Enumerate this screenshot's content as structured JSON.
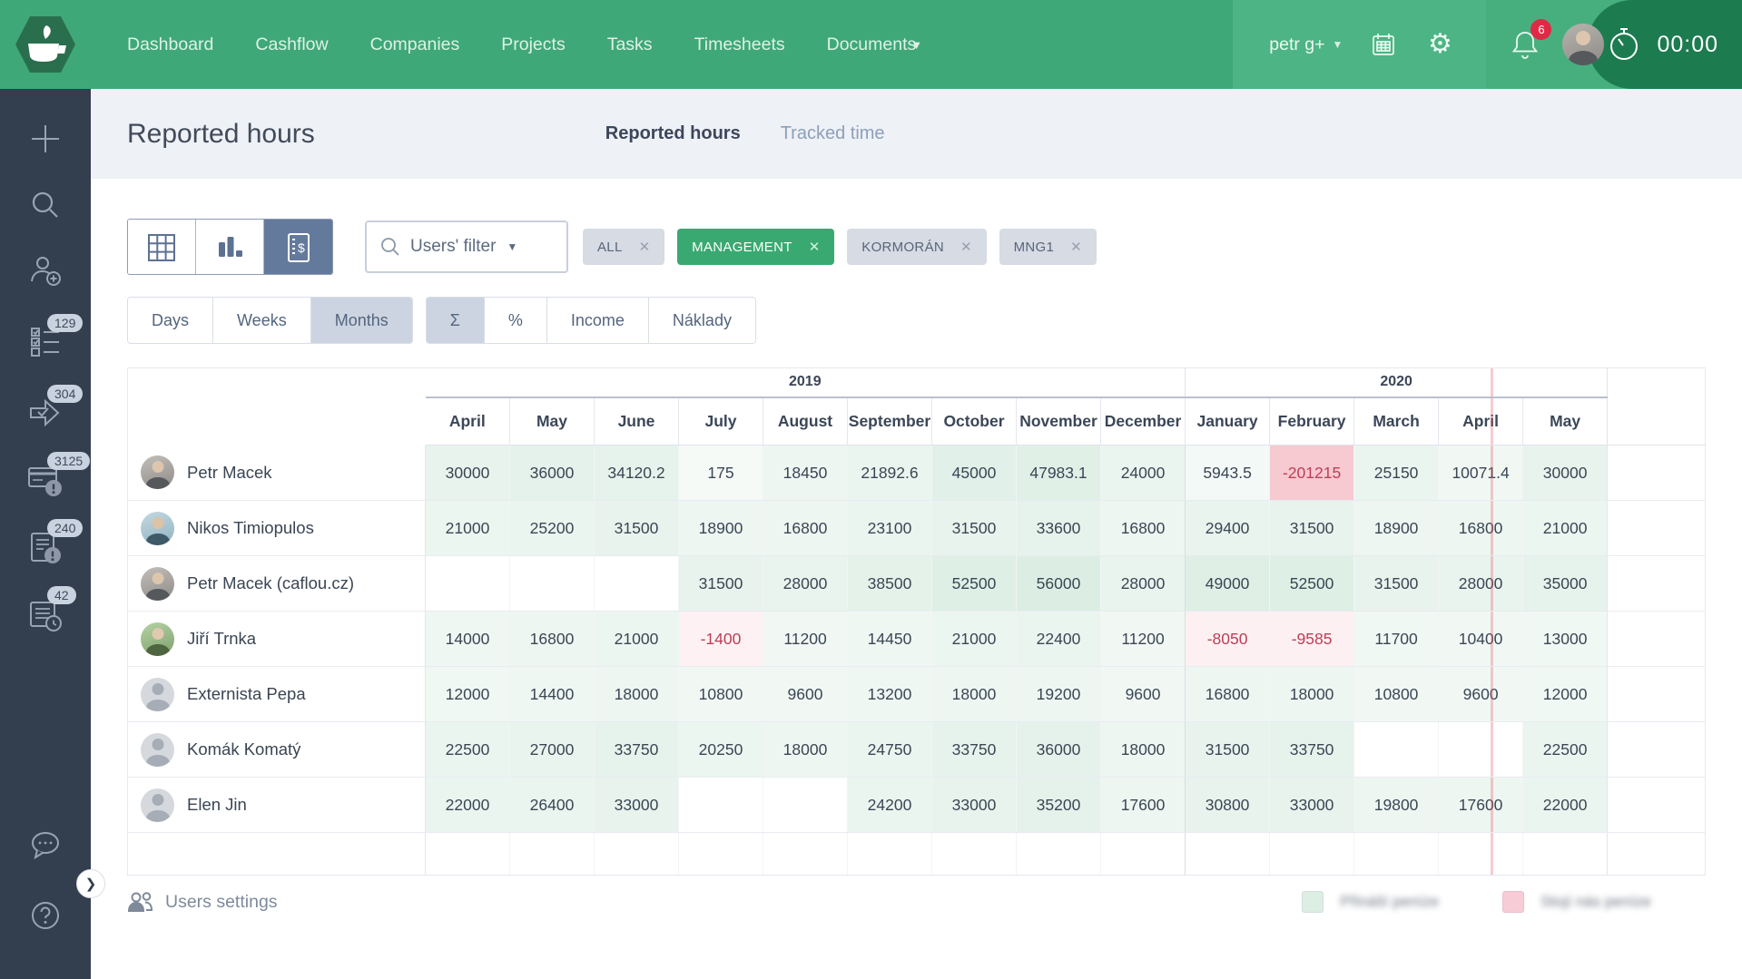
{
  "nav": {
    "items": [
      "Dashboard",
      "Cashflow",
      "Companies",
      "Projects",
      "Tasks",
      "Timesheets",
      "Documents"
    ],
    "user_label": "petr g+",
    "notifications_count": "6",
    "timer": "00:00"
  },
  "sidebar": {
    "badges": {
      "tasks": "129",
      "approvals": "304",
      "billing": "3125",
      "invoices": "240",
      "reports": "42"
    }
  },
  "header": {
    "title": "Reported hours",
    "tabs": [
      {
        "label": "Reported hours",
        "active": true
      },
      {
        "label": "Tracked time",
        "active": false
      }
    ]
  },
  "filters": {
    "users_filter_label": "Users' filter",
    "chips": [
      {
        "label": "ALL",
        "active": false
      },
      {
        "label": "MANAGEMENT",
        "active": true
      },
      {
        "label": "KORMORÁN",
        "active": false
      },
      {
        "label": "MNG1",
        "active": false
      }
    ],
    "period_buttons": [
      {
        "label": "Days",
        "active": false
      },
      {
        "label": "Weeks",
        "active": false
      },
      {
        "label": "Months",
        "active": true
      }
    ],
    "metric_buttons": [
      {
        "label": "Σ",
        "active": true
      },
      {
        "label": "%",
        "active": false
      },
      {
        "label": "Income",
        "active": false
      },
      {
        "label": "Náklady",
        "active": false
      }
    ]
  },
  "table": {
    "year_groups": [
      {
        "label": "2019",
        "span": 9
      },
      {
        "label": "2020",
        "span": 5
      }
    ],
    "months": [
      "April",
      "May",
      "June",
      "July",
      "August",
      "September",
      "October",
      "November",
      "December",
      "January",
      "February",
      "March",
      "April",
      "May"
    ],
    "today_month_index": 12,
    "rows": [
      {
        "name": "Petr Macek",
        "avatar": "photo-gray",
        "values": [
          "30000",
          "36000",
          "34120.2",
          "175",
          "18450",
          "21892.6",
          "45000",
          "47983.1",
          "24000",
          "5943.5",
          "-201215",
          "25150",
          "10071.4",
          "30000"
        ]
      },
      {
        "name": "Nikos Timiopulos",
        "avatar": "photo-blue",
        "values": [
          "21000",
          "25200",
          "31500",
          "18900",
          "16800",
          "23100",
          "31500",
          "33600",
          "16800",
          "29400",
          "31500",
          "18900",
          "16800",
          "21000"
        ]
      },
      {
        "name": "Petr Macek (caflou.cz)",
        "avatar": "photo-gray",
        "values": [
          null,
          null,
          null,
          "31500",
          "28000",
          "38500",
          "52500",
          "56000",
          "28000",
          "49000",
          "52500",
          "31500",
          "28000",
          "35000"
        ]
      },
      {
        "name": "Jiří Trnka",
        "avatar": "photo-green",
        "values": [
          "14000",
          "16800",
          "21000",
          "-1400",
          "11200",
          "14450",
          "21000",
          "22400",
          "11200",
          "-8050",
          "-9585",
          "11700",
          "10400",
          "13000"
        ]
      },
      {
        "name": "Externista Pepa",
        "avatar": "generic",
        "values": [
          "12000",
          "14400",
          "18000",
          "10800",
          "9600",
          "13200",
          "18000",
          "19200",
          "9600",
          "16800",
          "18000",
          "10800",
          "9600",
          "12000"
        ]
      },
      {
        "name": "Komák Komatý",
        "avatar": "generic",
        "values": [
          "22500",
          "27000",
          "33750",
          "20250",
          "18000",
          "24750",
          "33750",
          "36000",
          "18000",
          "31500",
          "33750",
          null,
          null,
          "22500"
        ]
      },
      {
        "name": "Elen Jin",
        "avatar": "generic",
        "values": [
          "22000",
          "26400",
          "33000",
          null,
          null,
          "24200",
          "33000",
          "35200",
          "17600",
          "30800",
          "33000",
          "19800",
          "17600",
          "22000"
        ]
      }
    ]
  },
  "footer": {
    "users_settings_label": "Users settings",
    "legend": [
      {
        "color": "#ddeee4",
        "label": "Přináší peníze"
      },
      {
        "color": "#f8ccd6",
        "label": "Stojí nás peníze"
      }
    ]
  },
  "colors": {
    "nav_green": "#3fa878",
    "sidebar_dark": "#333e4e",
    "accent_slate": "#647a9c",
    "chip_green": "#3aa971",
    "positive_cell": "#3ea069",
    "negative_cell": "#e13c5a",
    "negative_text": "#bd3e56",
    "today_line": "#e75f69"
  }
}
